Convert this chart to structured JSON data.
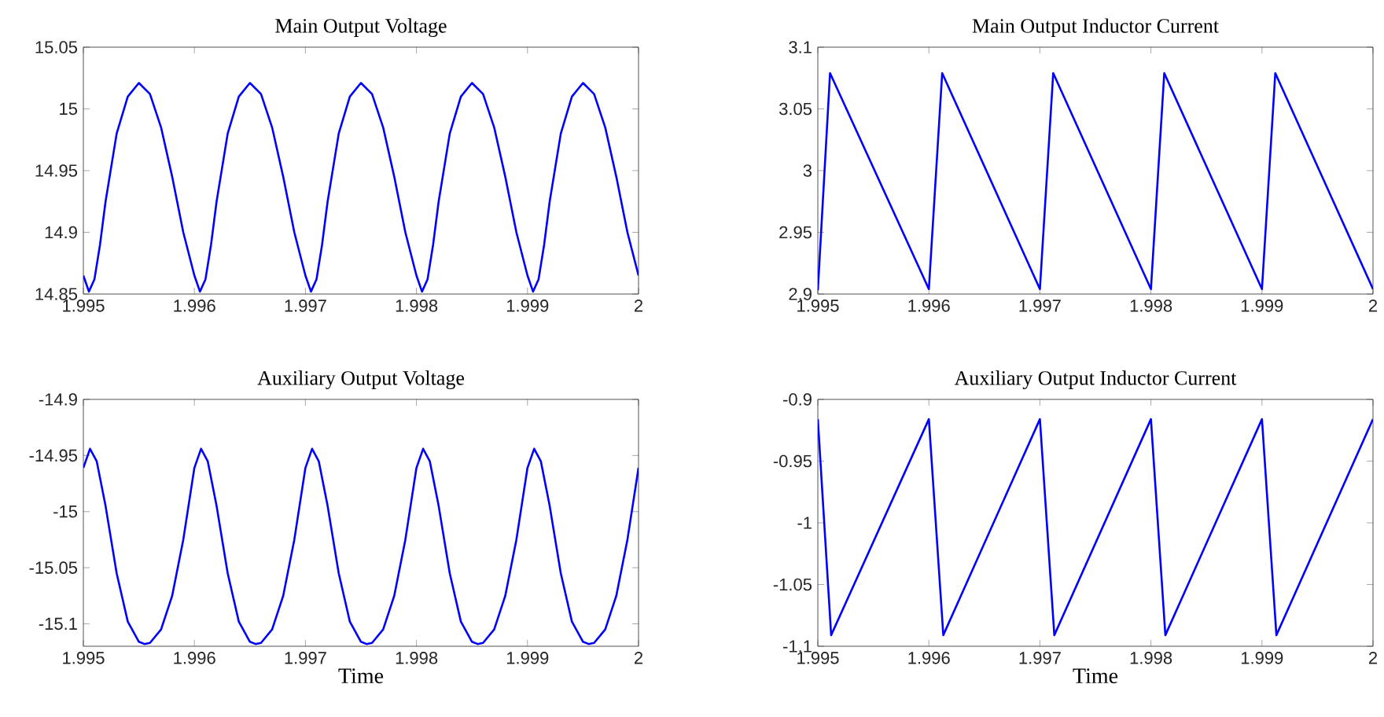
{
  "chart_data": [
    {
      "type": "line",
      "title": "Main Output Voltage",
      "xlim": [
        1.995,
        2
      ],
      "xticks": [
        1.995,
        1.996,
        1.997,
        1.998,
        1.999,
        2
      ],
      "ylim": [
        14.85,
        15.05
      ],
      "yticks": [
        14.85,
        14.9,
        14.95,
        15,
        15.05
      ],
      "series": [
        {
          "color": "#0000ff",
          "x": [
            1.995,
            1.99505,
            1.9951,
            1.99515,
            1.9952,
            1.9953,
            1.9954,
            1.9955,
            1.9956,
            1.9957,
            1.9958,
            1.9959,
            1.996,
            1.99605,
            1.9961,
            1.99615,
            1.9962,
            1.9963,
            1.9964,
            1.9965,
            1.9966,
            1.9967,
            1.9968,
            1.9969,
            1.997,
            1.99705,
            1.9971,
            1.99715,
            1.9972,
            1.9973,
            1.9974,
            1.9975,
            1.9976,
            1.9977,
            1.9978,
            1.9979,
            1.998,
            1.99805,
            1.9981,
            1.99815,
            1.9982,
            1.9983,
            1.9984,
            1.9985,
            1.9986,
            1.9987,
            1.9988,
            1.9989,
            1.999,
            1.99905,
            1.9991,
            1.99915,
            1.9992,
            1.9993,
            1.9994,
            1.9995,
            1.9996,
            1.9997,
            1.9998,
            1.9999,
            2
          ],
          "values": [
            14.865,
            14.852,
            14.862,
            14.89,
            14.925,
            14.98,
            15.01,
            15.021,
            15.012,
            14.985,
            14.945,
            14.9,
            14.865,
            14.852,
            14.862,
            14.89,
            14.925,
            14.98,
            15.01,
            15.021,
            15.012,
            14.985,
            14.945,
            14.9,
            14.865,
            14.852,
            14.862,
            14.89,
            14.925,
            14.98,
            15.01,
            15.021,
            15.012,
            14.985,
            14.945,
            14.9,
            14.865,
            14.852,
            14.862,
            14.89,
            14.925,
            14.98,
            15.01,
            15.021,
            15.012,
            14.985,
            14.945,
            14.9,
            14.865,
            14.852,
            14.862,
            14.89,
            14.925,
            14.98,
            15.01,
            15.021,
            15.012,
            14.985,
            14.945,
            14.9,
            14.865
          ]
        }
      ]
    },
    {
      "type": "line",
      "title": "Main Output Inductor Current",
      "xlim": [
        1.995,
        2
      ],
      "xticks": [
        1.995,
        1.996,
        1.997,
        1.998,
        1.999,
        2
      ],
      "ylim": [
        2.9,
        3.1
      ],
      "yticks": [
        2.9,
        2.95,
        3,
        3.05,
        3.1
      ],
      "series": [
        {
          "color": "#0000ff",
          "x": [
            1.995,
            1.99511,
            1.996,
            1.99612,
            1.997,
            1.99712,
            1.998,
            1.99812,
            1.999,
            1.99912,
            2
          ],
          "values": [
            2.903,
            3.079,
            2.904,
            3.079,
            2.904,
            3.079,
            2.904,
            3.079,
            2.904,
            3.079,
            2.904
          ]
        }
      ]
    },
    {
      "type": "line",
      "title": "Auxiliary Output Voltage",
      "xlabel": "Time",
      "xlim": [
        1.995,
        2
      ],
      "xticks": [
        1.995,
        1.996,
        1.997,
        1.998,
        1.999,
        2
      ],
      "ylim": [
        -15.12,
        -14.9
      ],
      "yticks": [
        -15.1,
        -15.05,
        -15,
        -14.95,
        -14.9
      ],
      "series": [
        {
          "color": "#0000ff",
          "x": [
            1.995,
            1.99506,
            1.99512,
            1.9952,
            1.9953,
            1.9954,
            1.9955,
            1.99555,
            1.9956,
            1.9957,
            1.9958,
            1.9959,
            1.996,
            1.99606,
            1.99612,
            1.9962,
            1.9963,
            1.9964,
            1.9965,
            1.99655,
            1.9966,
            1.9967,
            1.9968,
            1.9969,
            1.997,
            1.99706,
            1.99712,
            1.9972,
            1.9973,
            1.9974,
            1.9975,
            1.99755,
            1.9976,
            1.9977,
            1.9978,
            1.9979,
            1.998,
            1.99806,
            1.99812,
            1.9982,
            1.9983,
            1.9984,
            1.9985,
            1.99855,
            1.9986,
            1.9987,
            1.9988,
            1.9989,
            1.999,
            1.99906,
            1.99912,
            1.9992,
            1.9993,
            1.9994,
            1.9995,
            1.99955,
            1.9996,
            1.9997,
            1.9998,
            1.9999,
            2
          ],
          "values": [
            -14.961,
            -14.944,
            -14.955,
            -14.995,
            -15.055,
            -15.098,
            -15.116,
            -15.118,
            -15.117,
            -15.105,
            -15.075,
            -15.025,
            -14.961,
            -14.944,
            -14.955,
            -14.995,
            -15.055,
            -15.098,
            -15.116,
            -15.118,
            -15.117,
            -15.105,
            -15.075,
            -15.025,
            -14.961,
            -14.944,
            -14.955,
            -14.995,
            -15.055,
            -15.098,
            -15.116,
            -15.118,
            -15.117,
            -15.105,
            -15.075,
            -15.025,
            -14.961,
            -14.944,
            -14.955,
            -14.995,
            -15.055,
            -15.098,
            -15.116,
            -15.118,
            -15.117,
            -15.105,
            -15.075,
            -15.025,
            -14.961,
            -14.944,
            -14.955,
            -14.995,
            -15.055,
            -15.098,
            -15.116,
            -15.118,
            -15.117,
            -15.105,
            -15.075,
            -15.025,
            -14.961
          ]
        }
      ]
    },
    {
      "type": "line",
      "title": "Auxiliary Output Inductor Current",
      "xlabel": "Time",
      "xlim": [
        1.995,
        2
      ],
      "xticks": [
        1.995,
        1.996,
        1.997,
        1.998,
        1.999,
        2
      ],
      "ylim": [
        -1.1,
        -0.9
      ],
      "yticks": [
        -1.1,
        -1.05,
        -1,
        -0.95,
        -0.9
      ],
      "series": [
        {
          "color": "#0000ff",
          "x": [
            1.995,
            1.99512,
            1.996,
            1.99613,
            1.997,
            1.99713,
            1.998,
            1.99813,
            1.999,
            1.99913,
            2
          ],
          "values": [
            -0.916,
            -1.091,
            -0.916,
            -1.091,
            -0.916,
            -1.091,
            -0.916,
            -1.091,
            -0.916,
            -1.091,
            -0.916
          ]
        }
      ]
    }
  ]
}
